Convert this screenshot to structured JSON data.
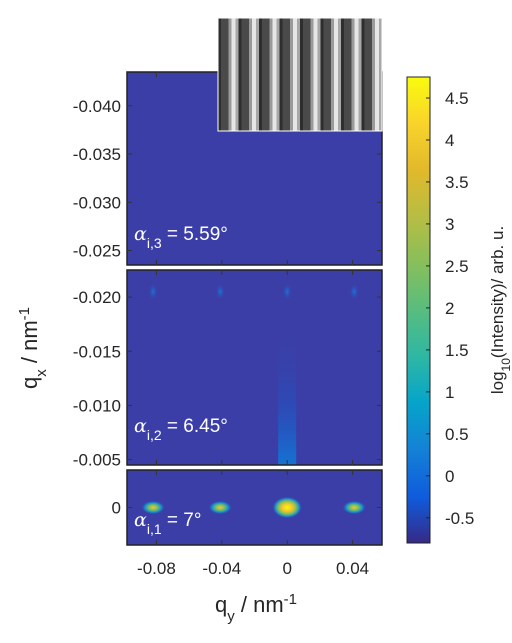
{
  "chart_data": {
    "type": "heatmap",
    "panels": [
      {
        "id": "top",
        "annotation": {
          "alpha": "α",
          "sub": "i,3",
          "value": " = 5.59°"
        },
        "ylim": [
          -0.0235,
          -0.0435
        ],
        "yticks": [
          {
            "v": -0.04,
            "label": "-0.040"
          },
          {
            "v": -0.035,
            "label": "-0.035"
          },
          {
            "v": -0.03,
            "label": "-0.030"
          },
          {
            "v": -0.025,
            "label": "-0.025"
          }
        ]
      },
      {
        "id": "middle",
        "annotation": {
          "alpha": "α",
          "sub": "i,2",
          "value": " = 6.45°"
        },
        "ylim": [
          -0.0045,
          -0.0225
        ],
        "yticks": [
          {
            "v": -0.02,
            "label": "-0.020"
          },
          {
            "v": -0.015,
            "label": "-0.015"
          },
          {
            "v": -0.01,
            "label": "-0.010"
          },
          {
            "v": -0.005,
            "label": "-0.005"
          }
        ]
      },
      {
        "id": "bottom",
        "annotation": {
          "alpha": "α",
          "sub": "i,1",
          "value": " = 7°"
        },
        "ylim": [
          0.0035,
          -0.0035
        ],
        "yticks": [
          {
            "v": 0,
            "label": "0"
          }
        ]
      }
    ],
    "xlim": [
      -0.098,
      0.058
    ],
    "xticks": [
      {
        "v": -0.08,
        "label": "-0.08"
      },
      {
        "v": -0.04,
        "label": "-0.04"
      },
      {
        "v": 0,
        "label": "0"
      },
      {
        "v": 0.04,
        "label": "0.04"
      }
    ],
    "xlabel": {
      "base": "q",
      "sub": "y",
      "unit": " / nm",
      "sup": "-1"
    },
    "ylabel": {
      "base": "q",
      "sub": "x",
      "unit": " / nm",
      "sup": "-1"
    },
    "bragg_peaks_qy": [
      -0.082,
      -0.041,
      0,
      0.041
    ],
    "colorbar": {
      "range": [
        -0.8,
        4.75
      ],
      "ticks": [
        {
          "v": -0.5,
          "label": "-0.5"
        },
        {
          "v": 0,
          "label": "0"
        },
        {
          "v": 0.5,
          "label": "0.5"
        },
        {
          "v": 1,
          "label": "1"
        },
        {
          "v": 1.5,
          "label": "1.5"
        },
        {
          "v": 2,
          "label": "2"
        },
        {
          "v": 2.5,
          "label": "2.5"
        },
        {
          "v": 3,
          "label": "3"
        },
        {
          "v": 3.5,
          "label": "3.5"
        },
        {
          "v": 4,
          "label": "4"
        },
        {
          "v": 4.5,
          "label": "4.5"
        }
      ],
      "label": {
        "pre": "log",
        "sub": "10",
        "post": "(Intensity)/ arb. u."
      },
      "colormap": "parula"
    },
    "colors": {
      "background": "#3b3ea6",
      "frame": "#222222",
      "gap": "#ffffff"
    }
  }
}
